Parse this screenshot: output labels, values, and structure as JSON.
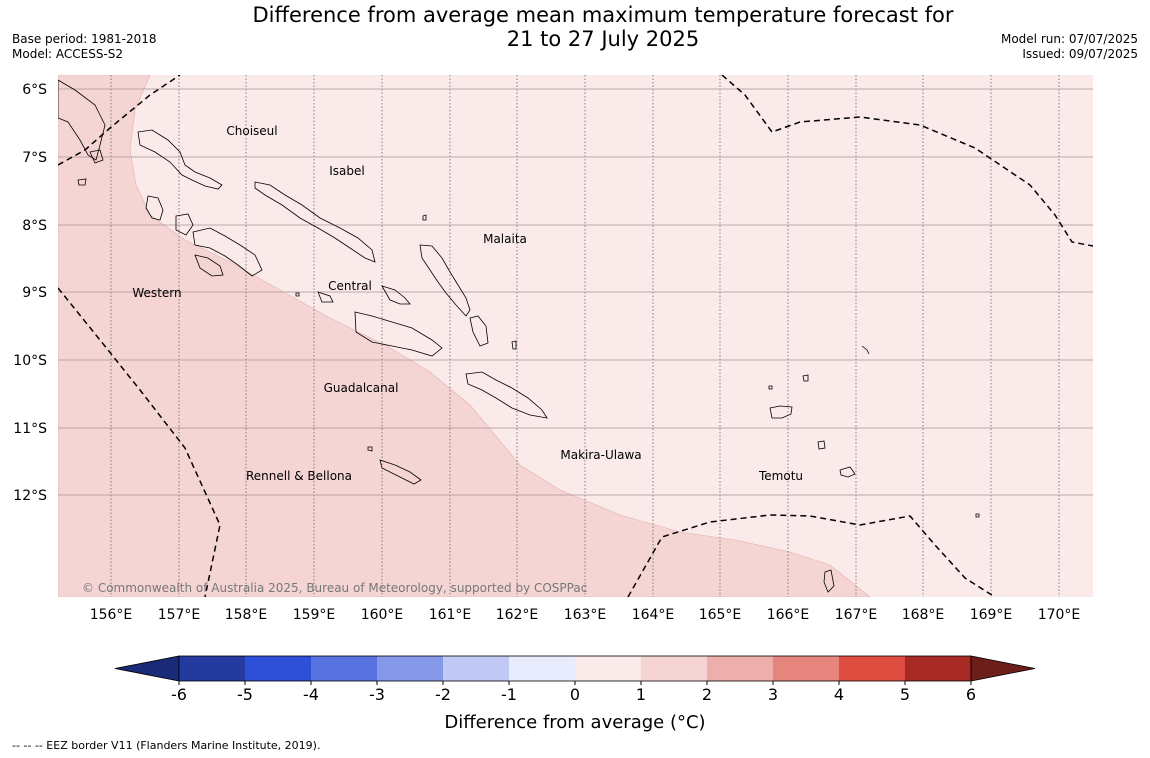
{
  "title": {
    "line1": "Difference from average mean maximum temperature forecast for",
    "line2": "21 to 27 July 2025"
  },
  "meta_left": {
    "base_period": "Base period: 1981-2018",
    "model": "Model: ACCESS-S2"
  },
  "meta_right": {
    "model_run": "Model run: 07/07/2025",
    "issued": "Issued: 09/07/2025"
  },
  "map": {
    "lat_labels": [
      "6°S",
      "7°S",
      "8°S",
      "9°S",
      "10°S",
      "11°S",
      "12°S"
    ],
    "lon_labels": [
      "156°E",
      "157°E",
      "158°E",
      "159°E",
      "160°E",
      "161°E",
      "162°E",
      "163°E",
      "164°E",
      "165°E",
      "166°E",
      "167°E",
      "168°E",
      "169°E",
      "170°E"
    ],
    "regions": [
      "Choiseul",
      "Isabel",
      "Malaita",
      "Western",
      "Central",
      "Guadalcanal",
      "Makira-Ulawa",
      "Temotu",
      "Rennell & Bellona"
    ],
    "copyright": "© Commonwealth of Australia 2025, Bureau of Meteorology, supported by COSPPac",
    "colors": {
      "band_0_1": "#fbeaea",
      "band_1_2": "#f5d5d4",
      "coastline": "#000000",
      "eez_border": "#000000"
    }
  },
  "colorbar": {
    "ticks": [
      "-6",
      "-5",
      "-4",
      "-3",
      "-2",
      "-1",
      "0",
      "1",
      "2",
      "3",
      "4",
      "5",
      "6"
    ],
    "colors": [
      "#253a9e",
      "#2e4fd8",
      "#5873e0",
      "#8598ea",
      "#c0c9f4",
      "#e8ebfb",
      "#fbeaea",
      "#f5d5d4",
      "#eeaeab",
      "#e5857d",
      "#dc4c3f",
      "#a82a24"
    ],
    "under_color": "#1a2a78",
    "over_color": "#6e1e1a",
    "label": "Difference from average (°C)"
  },
  "footnote": "--  --  -- EEZ border V11 (Flanders Marine Institute, 2019)."
}
